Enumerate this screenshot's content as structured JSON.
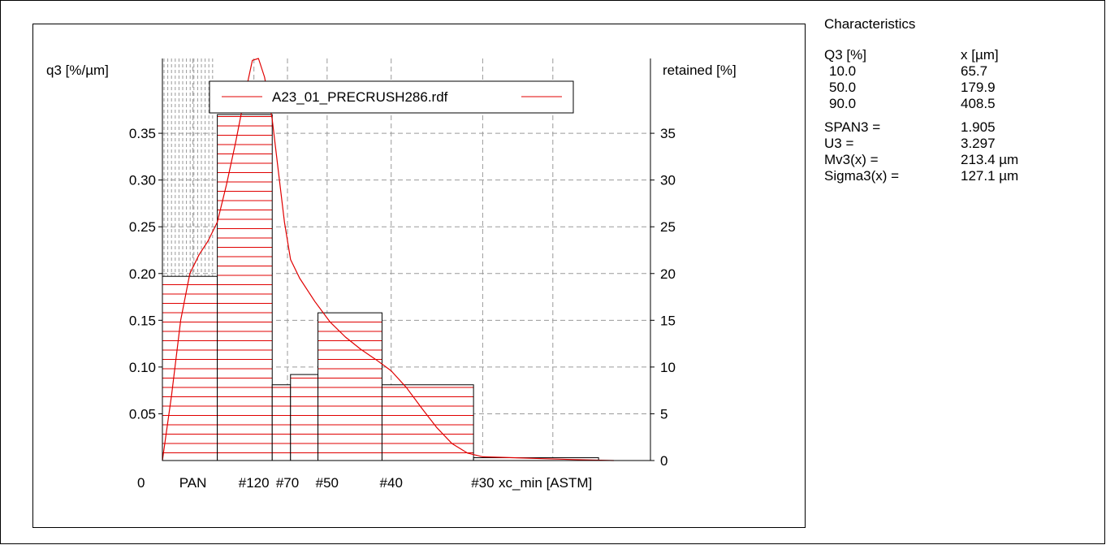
{
  "characteristics": {
    "title": "Characteristics",
    "q3_header": "Q3 [%]",
    "x_header": "x [µm]",
    "quantiles": [
      {
        "q": "10.0",
        "x": "65.7"
      },
      {
        "q": "50.0",
        "x": "179.9"
      },
      {
        "q": "90.0",
        "x": "408.5"
      }
    ],
    "stats": [
      {
        "label": "SPAN3 =",
        "value": "1.905"
      },
      {
        "label": "U3 =",
        "value": "3.297"
      },
      {
        "label": "Mv3(x) =",
        "value": "213.4 µm"
      },
      {
        "label": "Sigma3(x) =",
        "value": "127.1 µm"
      }
    ]
  },
  "chart_data": {
    "type": "bar",
    "ylabel_left": "q3 [%/µm]",
    "ylabel_right": "retained [%]",
    "xlabel": "xc_min [ASTM]",
    "x_origin_label": "0",
    "ylim_left": [
      0,
      0.43
    ],
    "ylim_right": [
      0,
      43
    ],
    "yticks_left": [
      {
        "value": 0.05,
        "label": "0.05"
      },
      {
        "value": 0.1,
        "label": "0.10"
      },
      {
        "value": 0.15,
        "label": "0.15"
      },
      {
        "value": 0.2,
        "label": "0.20"
      },
      {
        "value": 0.25,
        "label": "0.25"
      },
      {
        "value": 0.3,
        "label": "0.30"
      },
      {
        "value": 0.35,
        "label": "0.35"
      }
    ],
    "yticks_right": [
      {
        "value": 0,
        "label": "0"
      },
      {
        "value": 5,
        "label": "5"
      },
      {
        "value": 10,
        "label": "10"
      },
      {
        "value": 15,
        "label": "15"
      },
      {
        "value": 20,
        "label": "20"
      },
      {
        "value": 25,
        "label": "25"
      },
      {
        "value": 30,
        "label": "30"
      },
      {
        "value": 35,
        "label": "35"
      }
    ],
    "x_min": 0,
    "x_max": 16,
    "x_ticks": [
      {
        "x": 1,
        "label": "PAN"
      },
      {
        "x": 3,
        "label": "#120"
      },
      {
        "x": 4.1,
        "label": "#70"
      },
      {
        "x": 5.4,
        "label": "#50"
      },
      {
        "x": 7.5,
        "label": "#40"
      },
      {
        "x": 10.5,
        "label": "#30"
      }
    ],
    "bars": [
      {
        "x0": 0,
        "x1": 1.8,
        "q3": 0.197
      },
      {
        "x0": 1.8,
        "x1": 3.6,
        "q3": 0.37
      },
      {
        "x0": 3.6,
        "x1": 4.2,
        "q3": 0.081
      },
      {
        "x0": 4.2,
        "x1": 5.1,
        "q3": 0.092
      },
      {
        "x0": 5.1,
        "x1": 7.2,
        "q3": 0.158
      },
      {
        "x0": 7.2,
        "x1": 10.2,
        "q3": 0.081
      },
      {
        "x0": 10.2,
        "x1": 14.3,
        "q3": 0.003
      }
    ],
    "density_curve": {
      "name": "A23_01_PRECRUSH286.rdf",
      "color": "#e00000",
      "points": [
        [
          0,
          0
        ],
        [
          0.3,
          0.07
        ],
        [
          0.6,
          0.15
        ],
        [
          0.9,
          0.2
        ],
        [
          1.2,
          0.22
        ],
        [
          1.5,
          0.235
        ],
        [
          1.8,
          0.255
        ],
        [
          2.1,
          0.295
        ],
        [
          2.4,
          0.34
        ],
        [
          2.7,
          0.39
        ],
        [
          2.95,
          0.428
        ],
        [
          3.15,
          0.43
        ],
        [
          3.35,
          0.41
        ],
        [
          3.6,
          0.365
        ],
        [
          3.8,
          0.31
        ],
        [
          4.0,
          0.255
        ],
        [
          4.2,
          0.215
        ],
        [
          4.5,
          0.195
        ],
        [
          5.0,
          0.17
        ],
        [
          5.5,
          0.148
        ],
        [
          6.0,
          0.132
        ],
        [
          6.5,
          0.119
        ],
        [
          7.0,
          0.108
        ],
        [
          7.5,
          0.096
        ],
        [
          8.0,
          0.078
        ],
        [
          8.5,
          0.056
        ],
        [
          9.0,
          0.035
        ],
        [
          9.5,
          0.018
        ],
        [
          10.0,
          0.008
        ],
        [
          10.5,
          0.004
        ],
        [
          11.5,
          0.003
        ],
        [
          12.5,
          0.002
        ],
        [
          13.5,
          0.001
        ],
        [
          14.8,
          0
        ]
      ]
    },
    "hatch_color": "#e00000",
    "grid": true,
    "legend_position": "top"
  }
}
